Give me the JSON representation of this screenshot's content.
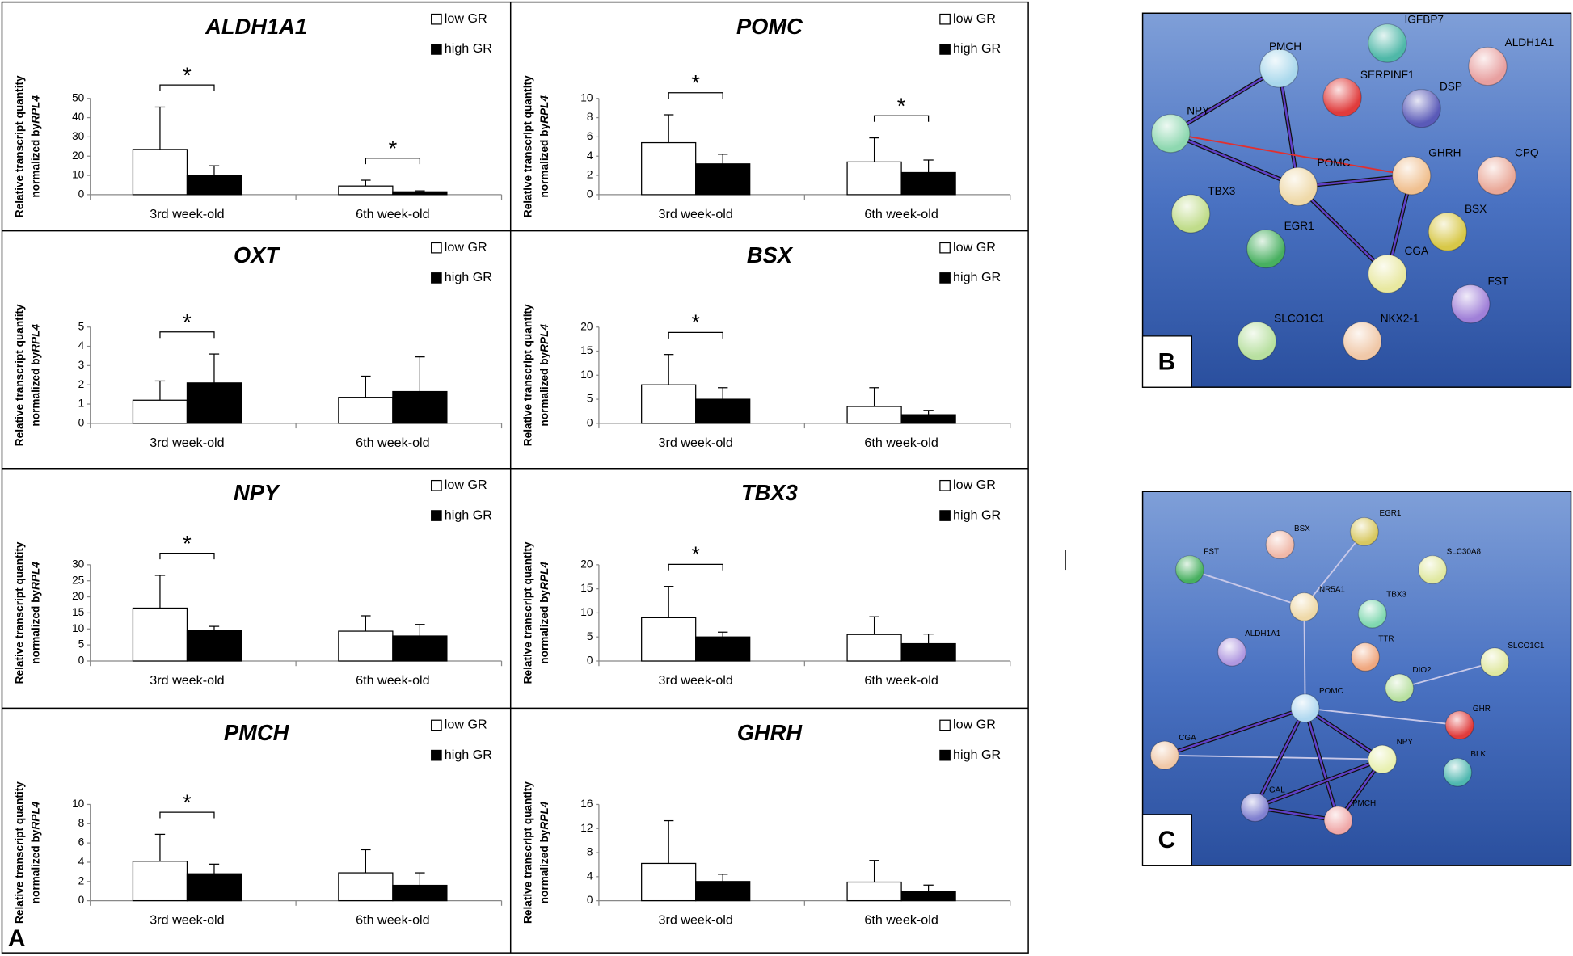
{
  "panel_label": "A",
  "chart_data": [
    {
      "type": "bar",
      "title": "ALDH1A1",
      "ylabel": [
        "Relative transcript quantity",
        "normalized by",
        "RPL4"
      ],
      "categories": [
        "3rd week-old",
        "6th week-old"
      ],
      "series": [
        {
          "name": "low GR",
          "color": "#ffffff",
          "values": [
            23.5,
            4.5
          ],
          "errors": [
            22,
            3
          ]
        },
        {
          "name": "high GR",
          "color": "#000000",
          "values": [
            10,
            1.5
          ],
          "errors": [
            5,
            0.5
          ]
        }
      ],
      "ylim": [
        0,
        50
      ],
      "yticks": [
        0,
        10,
        20,
        30,
        40,
        50
      ],
      "significance": [
        "*",
        "*"
      ]
    },
    {
      "type": "bar",
      "title": "POMC",
      "ylabel": [
        "Relative transcript quantity",
        "normalized by",
        "RPL4"
      ],
      "categories": [
        "3rd week-old",
        "6th week-old"
      ],
      "series": [
        {
          "name": "low GR",
          "color": "#ffffff",
          "values": [
            5.4,
            3.4
          ],
          "errors": [
            2.9,
            2.5
          ]
        },
        {
          "name": "high GR",
          "color": "#000000",
          "values": [
            3.2,
            2.3
          ],
          "errors": [
            1.0,
            1.3
          ]
        }
      ],
      "ylim": [
        0,
        10
      ],
      "yticks": [
        0,
        2,
        4,
        6,
        8,
        10
      ],
      "significance": [
        "*",
        "*"
      ]
    },
    {
      "type": "bar",
      "title": "OXT",
      "ylabel": [
        "Relative transcript quantity",
        "normalized by",
        "RPL4"
      ],
      "categories": [
        "3rd week-old",
        "6th week-old"
      ],
      "series": [
        {
          "name": "low GR",
          "color": "#ffffff",
          "values": [
            1.2,
            1.35
          ],
          "errors": [
            1.0,
            1.1
          ]
        },
        {
          "name": "high GR",
          "color": "#000000",
          "values": [
            2.1,
            1.65
          ],
          "errors": [
            1.5,
            1.8
          ]
        }
      ],
      "ylim": [
        0,
        5
      ],
      "yticks": [
        0,
        1,
        2,
        3,
        4,
        5
      ],
      "significance": [
        "*",
        null
      ]
    },
    {
      "type": "bar",
      "title": "BSX",
      "ylabel": [
        "Relative transcript quantity",
        "normalized by",
        "RPL4"
      ],
      "categories": [
        "3rd week-old",
        "6th week-old"
      ],
      "series": [
        {
          "name": "low GR",
          "color": "#ffffff",
          "values": [
            8,
            3.5
          ],
          "errors": [
            6.3,
            3.9
          ]
        },
        {
          "name": "high GR",
          "color": "#000000",
          "values": [
            5,
            1.8
          ],
          "errors": [
            2.4,
            0.9
          ]
        }
      ],
      "ylim": [
        0,
        20
      ],
      "yticks": [
        0,
        5,
        10,
        15,
        20
      ],
      "significance": [
        "*",
        null
      ]
    },
    {
      "type": "bar",
      "title": "NPY",
      "ylabel": [
        "Relative transcript quantity",
        "normalized by",
        "RPL4"
      ],
      "categories": [
        "3rd week-old",
        "6th week-old"
      ],
      "series": [
        {
          "name": "low GR",
          "color": "#ffffff",
          "values": [
            16.5,
            9.3
          ],
          "errors": [
            10.2,
            4.8
          ]
        },
        {
          "name": "high GR",
          "color": "#000000",
          "values": [
            9.6,
            7.8
          ],
          "errors": [
            1.2,
            3.6
          ]
        }
      ],
      "ylim": [
        0,
        30
      ],
      "yticks": [
        0,
        5,
        10,
        15,
        20,
        25,
        30
      ],
      "significance": [
        "*",
        null
      ]
    },
    {
      "type": "bar",
      "title": "TBX3",
      "ylabel": [
        "Relative transcript quantity",
        "normalized by",
        "RPL4"
      ],
      "categories": [
        "3rd week-old",
        "6th week-old"
      ],
      "series": [
        {
          "name": "low GR",
          "color": "#ffffff",
          "values": [
            9,
            5.5
          ],
          "errors": [
            6.5,
            3.7
          ]
        },
        {
          "name": "high GR",
          "color": "#000000",
          "values": [
            5,
            3.6
          ],
          "errors": [
            1,
            2
          ]
        }
      ],
      "ylim": [
        0,
        20
      ],
      "yticks": [
        0,
        5,
        10,
        15,
        20
      ],
      "significance": [
        "*",
        null
      ]
    },
    {
      "type": "bar",
      "title": "PMCH",
      "ylabel": [
        "Relative transcript quantity",
        "normalized by",
        "RPL4"
      ],
      "categories": [
        "3rd week-old",
        "6th week-old"
      ],
      "series": [
        {
          "name": "low GR",
          "color": "#ffffff",
          "values": [
            4.1,
            2.9
          ],
          "errors": [
            2.8,
            2.4
          ]
        },
        {
          "name": "high GR",
          "color": "#000000",
          "values": [
            2.8,
            1.6
          ],
          "errors": [
            1.0,
            1.3
          ]
        }
      ],
      "ylim": [
        0,
        10
      ],
      "yticks": [
        0,
        2,
        4,
        6,
        8,
        10
      ],
      "significance": [
        "*",
        null
      ]
    },
    {
      "type": "bar",
      "title": "GHRH",
      "ylabel": [
        "Relative transcript quantity",
        "normalized by",
        "RPL4"
      ],
      "categories": [
        "3rd week-old",
        "6th week-old"
      ],
      "series": [
        {
          "name": "low GR",
          "color": "#ffffff",
          "values": [
            6.2,
            3.1
          ],
          "errors": [
            7.1,
            3.6
          ]
        },
        {
          "name": "high GR",
          "color": "#000000",
          "values": [
            3.2,
            1.6
          ],
          "errors": [
            1.2,
            1.0
          ]
        }
      ],
      "ylim": [
        0,
        16
      ],
      "yticks": [
        0,
        4,
        8,
        12,
        16
      ],
      "significance": [
        null,
        null
      ]
    }
  ],
  "networks": [
    {
      "panel_label": "B",
      "nodes": [
        "PMCH",
        "IGFBP7",
        "ALDH1A1",
        "SERPINF1",
        "DSP",
        "NPY",
        "POMC",
        "GHRH",
        "CPQ",
        "TBX3",
        "BSX",
        "EGR1",
        "CGA",
        "FST",
        "SLCO1C1",
        "NKX2-1"
      ]
    },
    {
      "panel_label": "C",
      "nodes": [
        "FST",
        "BSX",
        "EGR1",
        "SLC30A8",
        "NR5A1",
        "TBX3",
        "ALDH1A1",
        "TTR",
        "SLCO1C1",
        "DIO2",
        "POMC",
        "GHR",
        "CGA",
        "NPY",
        "BLK",
        "GAL",
        "PMCH"
      ]
    }
  ]
}
